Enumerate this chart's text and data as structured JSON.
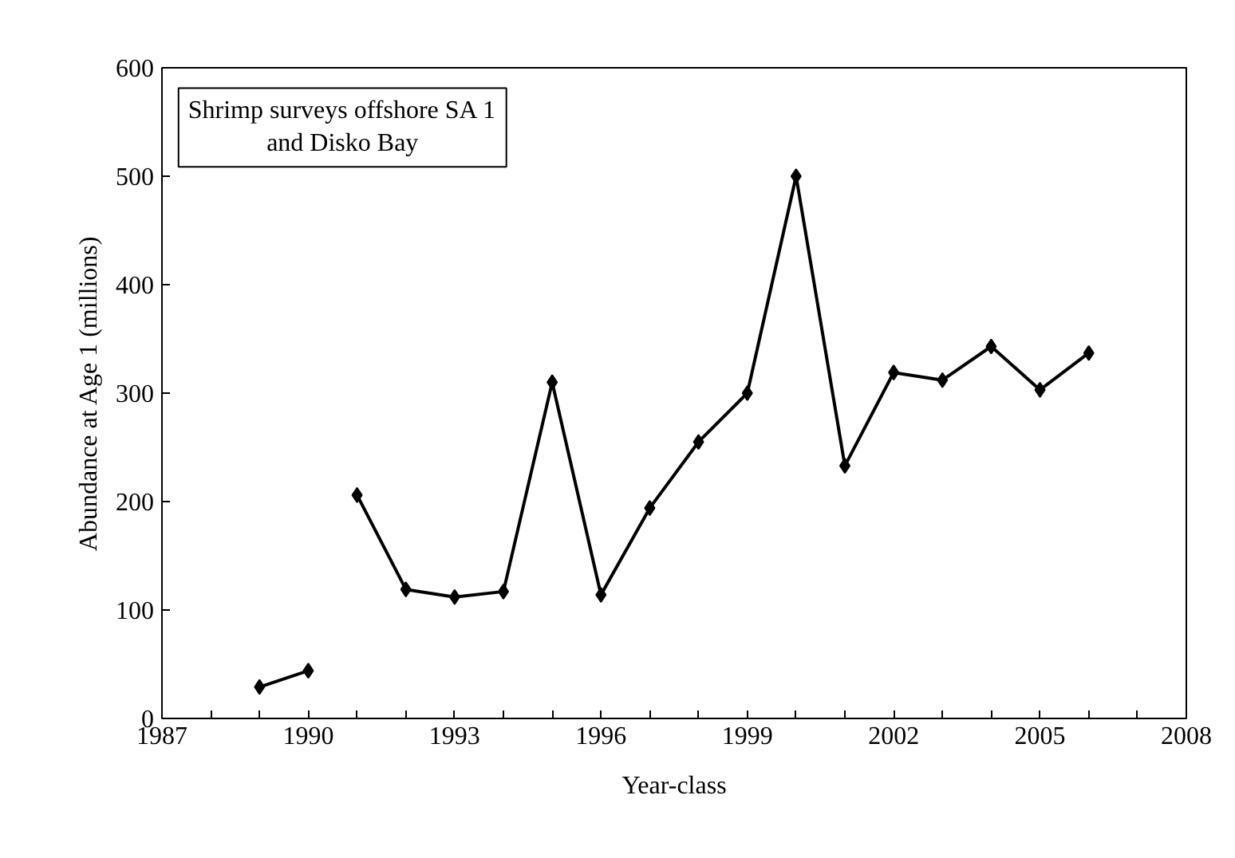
{
  "chart_data": {
    "type": "line",
    "xlabel": "Year-class",
    "ylabel": "Abundance at Age 1 (millions)",
    "annotations": [
      "Shrimp surveys offshore SA 1\nand Disko Bay"
    ],
    "series": [
      {
        "color": "#000000",
        "x": [
          1989,
          1990
        ],
        "values": [
          29,
          44
        ]
      },
      {
        "color": "#000000",
        "x": [
          1991,
          1992,
          1993,
          1994,
          1995,
          1996,
          1997,
          1998,
          1999,
          2000,
          2001,
          2002,
          2003,
          2004,
          2005,
          2006
        ],
        "values": [
          206,
          119,
          112,
          117,
          310,
          114,
          194,
          255,
          300,
          500,
          233,
          319,
          312,
          343,
          303,
          337
        ]
      }
    ],
    "marker": "diamond",
    "line_style": "solid",
    "grid": false,
    "xlim": [
      1987,
      2008
    ],
    "xticks": [
      1987,
      {
        "value": 1988,
        "label": null
      },
      {
        "value": 1989,
        "label": null
      },
      1990,
      {
        "value": 1991,
        "label": null
      },
      {
        "value": 1992,
        "label": null
      },
      1993,
      {
        "value": 1994,
        "label": null
      },
      {
        "value": 1995,
        "label": null
      },
      1996,
      {
        "value": 1997,
        "label": null
      },
      {
        "value": 1998,
        "label": null
      },
      1999,
      {
        "value": 2000,
        "label": null
      },
      {
        "value": 2001,
        "label": null
      },
      2002,
      {
        "value": 2003,
        "label": null
      },
      {
        "value": 2004,
        "label": null
      },
      2005,
      {
        "value": 2006,
        "label": null
      },
      {
        "value": 2007,
        "label": null
      },
      2008
    ],
    "ylim": [
      0,
      600
    ],
    "yticks": [
      0,
      100,
      200,
      300,
      400,
      500,
      600
    ]
  }
}
